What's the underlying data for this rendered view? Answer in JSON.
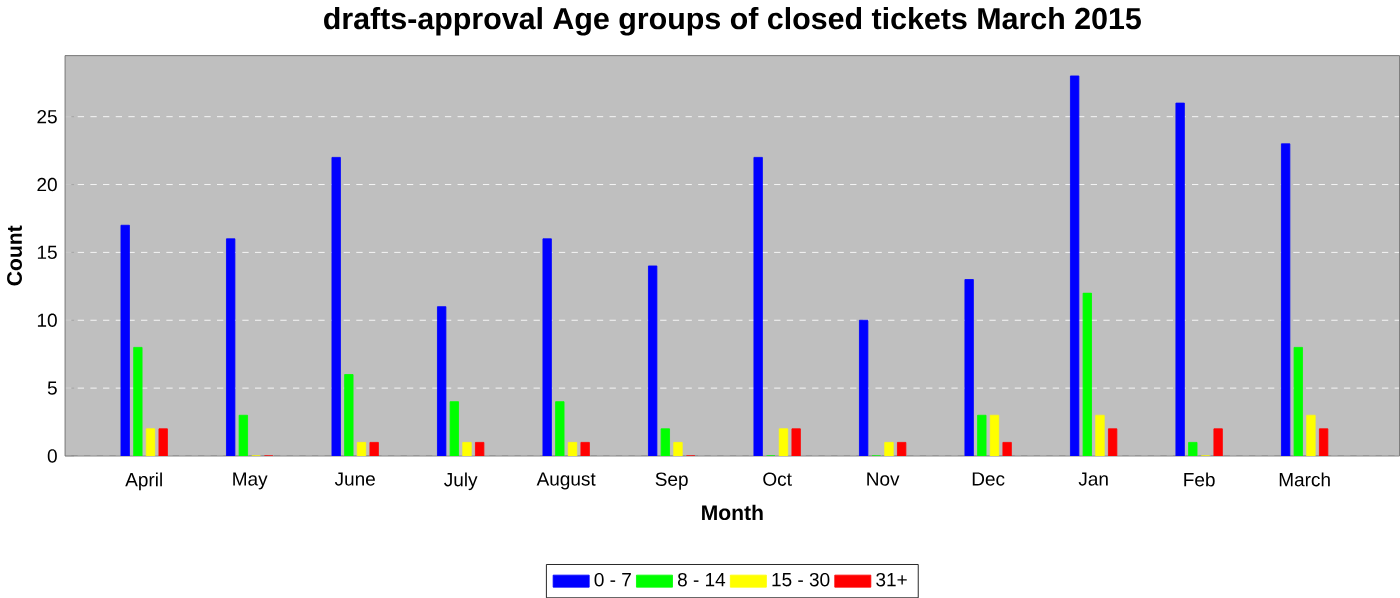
{
  "chart_data": {
    "type": "bar",
    "title": "drafts-approval Age groups of closed tickets March 2015",
    "xlabel": "Month",
    "ylabel": "Count",
    "categories": [
      "April",
      "May",
      "June",
      "July",
      "August",
      "Sep",
      "Oct",
      "Nov",
      "Dec",
      "Jan",
      "Feb",
      "March"
    ],
    "series": [
      {
        "name": "0 - 7",
        "color": "#0000ff",
        "values": [
          17,
          16,
          22,
          11,
          16,
          14,
          22,
          10,
          13,
          28,
          26,
          23
        ]
      },
      {
        "name": "8 - 14",
        "color": "#00ff00",
        "values": [
          8,
          3,
          6,
          4,
          4,
          2,
          0,
          0,
          3,
          12,
          1,
          8
        ]
      },
      {
        "name": "15 - 30",
        "color": "#ffff00",
        "values": [
          2,
          0,
          1,
          1,
          1,
          1,
          2,
          1,
          3,
          3,
          0,
          3
        ]
      },
      {
        "name": "31+",
        "color": "#ff0000",
        "values": [
          2,
          0,
          1,
          1,
          1,
          0,
          2,
          1,
          1,
          2,
          2,
          2
        ]
      }
    ],
    "ylim": [
      0,
      29.5
    ],
    "yticks": [
      0,
      5,
      10,
      15,
      20,
      25
    ],
    "grid": "y",
    "legend": "bottom"
  }
}
